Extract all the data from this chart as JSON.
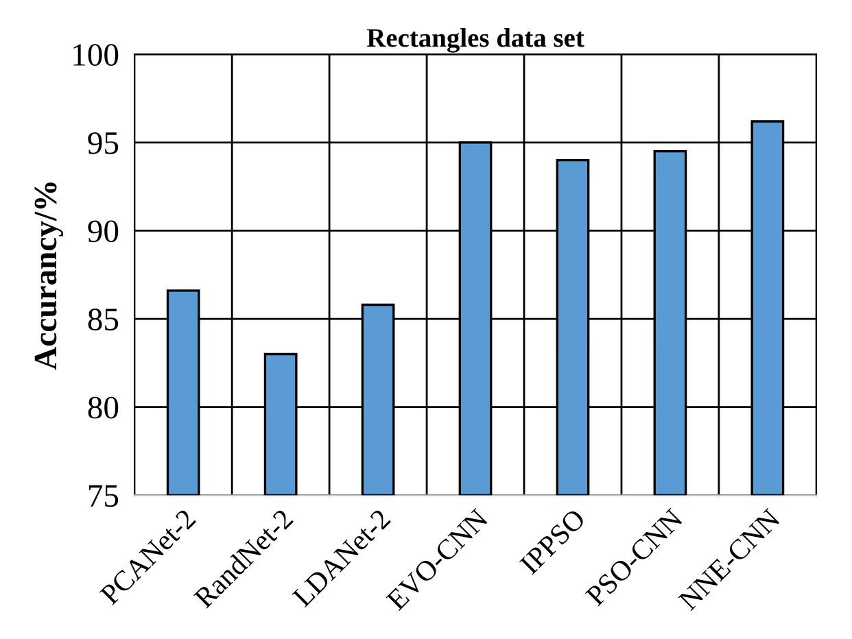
{
  "chart_data": {
    "type": "bar",
    "title": "Rectangles data set",
    "ylabel": "Accurancy/%",
    "categories": [
      "PCANet-2",
      "RandNet-2",
      "LDANet-2",
      "EVO-CNN",
      "IPPSO",
      "PSO-CNN",
      "NNE-CNN"
    ],
    "values": [
      86.6,
      83.0,
      85.8,
      95.0,
      94.0,
      94.5,
      96.2
    ],
    "color": "#5b9bd5",
    "ylim": [
      75,
      100
    ],
    "yticks": [
      75,
      80,
      85,
      90,
      95,
      100
    ],
    "grid": true,
    "legend": false
  }
}
